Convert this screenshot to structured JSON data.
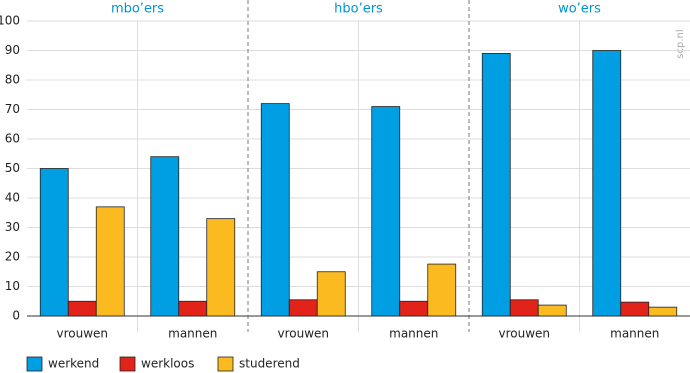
{
  "chart_data": {
    "type": "bar",
    "groups": [
      "mbo’ers",
      "hbo’ers",
      "wo’ers"
    ],
    "categories": [
      "vrouwen",
      "mannen",
      "vrouwen",
      "mannen",
      "vrouwen",
      "mannen"
    ],
    "series": [
      {
        "name": "werkend",
        "color": "#009fe3",
        "values": [
          50,
          54,
          72,
          71,
          89,
          90
        ]
      },
      {
        "name": "werkloos",
        "color": "#e2231a",
        "values": [
          5,
          5,
          5.5,
          5,
          5.5,
          4.7
        ]
      },
      {
        "name": "studerend",
        "color": "#fbba20",
        "values": [
          37,
          33,
          15,
          17.6,
          3.7,
          3
        ]
      }
    ],
    "ylim": [
      0,
      100
    ],
    "yticks": [
      0,
      10,
      20,
      30,
      40,
      50,
      60,
      70,
      80,
      90,
      100
    ],
    "grid": true,
    "watermark": "scp.nl"
  }
}
